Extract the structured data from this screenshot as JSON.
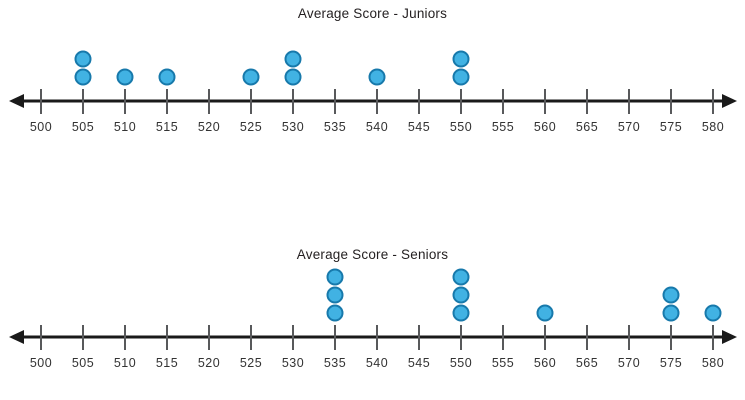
{
  "chart_data": [
    {
      "type": "dotplot",
      "title": "Average Score - Juniors",
      "xlabel": "",
      "ylabel": "",
      "axis": {
        "min": 500,
        "max": 580,
        "step": 5
      },
      "ticks": [
        500,
        505,
        510,
        515,
        520,
        525,
        530,
        535,
        540,
        545,
        550,
        555,
        560,
        565,
        570,
        575,
        580
      ],
      "values": [
        505,
        505,
        510,
        515,
        525,
        530,
        530,
        540,
        550,
        550
      ],
      "counts": {
        "505": 2,
        "510": 1,
        "515": 1,
        "525": 1,
        "530": 2,
        "540": 1,
        "550": 2
      },
      "legend": "none",
      "grid": false
    },
    {
      "type": "dotplot",
      "title": "Average Score - Seniors",
      "xlabel": "",
      "ylabel": "",
      "axis": {
        "min": 500,
        "max": 580,
        "step": 5
      },
      "ticks": [
        500,
        505,
        510,
        515,
        520,
        525,
        530,
        535,
        540,
        545,
        550,
        555,
        560,
        565,
        570,
        575,
        580
      ],
      "values": [
        535,
        535,
        535,
        550,
        550,
        550,
        560,
        575,
        575,
        580
      ],
      "counts": {
        "535": 3,
        "550": 3,
        "560": 1,
        "575": 2,
        "580": 1
      },
      "legend": "none",
      "grid": false
    }
  ],
  "colors": {
    "dot_fill": "#41b2e3",
    "dot_stroke": "#1779ab",
    "axis_line": "#1a1a1a",
    "tick_line": "#58595b",
    "tick_label": "#333333",
    "title_text": "#231f20",
    "background": "#ffffff"
  }
}
